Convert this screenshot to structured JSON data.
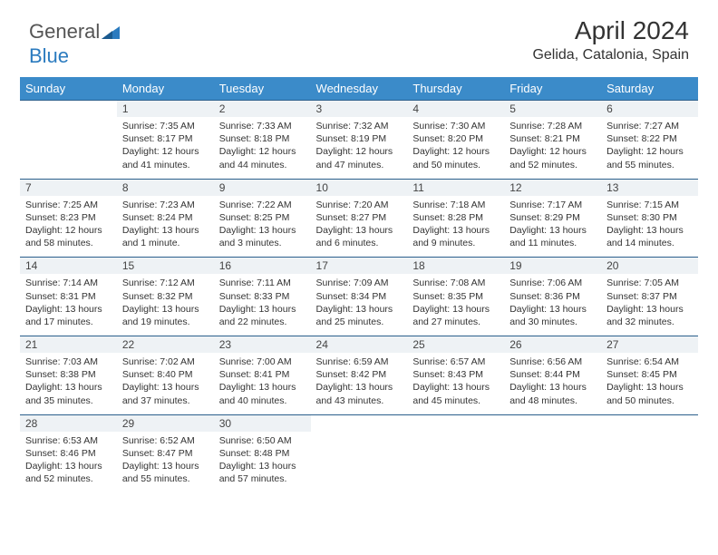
{
  "logo": {
    "text1": "General",
    "text2": "Blue"
  },
  "title": "April 2024",
  "location": "Gelida, Catalonia, Spain",
  "colors": {
    "header_bg": "#3b8bc9",
    "header_text": "#ffffff",
    "daynum_bg": "#eef2f5",
    "border": "#2b5f8c",
    "logo_gray": "#555555",
    "logo_blue": "#2b7bbf"
  },
  "day_headers": [
    "Sunday",
    "Monday",
    "Tuesday",
    "Wednesday",
    "Thursday",
    "Friday",
    "Saturday"
  ],
  "weeks": [
    [
      null,
      {
        "n": "1",
        "sr": "7:35 AM",
        "ss": "8:17 PM",
        "dl": "12 hours and 41 minutes."
      },
      {
        "n": "2",
        "sr": "7:33 AM",
        "ss": "8:18 PM",
        "dl": "12 hours and 44 minutes."
      },
      {
        "n": "3",
        "sr": "7:32 AM",
        "ss": "8:19 PM",
        "dl": "12 hours and 47 minutes."
      },
      {
        "n": "4",
        "sr": "7:30 AM",
        "ss": "8:20 PM",
        "dl": "12 hours and 50 minutes."
      },
      {
        "n": "5",
        "sr": "7:28 AM",
        "ss": "8:21 PM",
        "dl": "12 hours and 52 minutes."
      },
      {
        "n": "6",
        "sr": "7:27 AM",
        "ss": "8:22 PM",
        "dl": "12 hours and 55 minutes."
      }
    ],
    [
      {
        "n": "7",
        "sr": "7:25 AM",
        "ss": "8:23 PM",
        "dl": "12 hours and 58 minutes."
      },
      {
        "n": "8",
        "sr": "7:23 AM",
        "ss": "8:24 PM",
        "dl": "13 hours and 1 minute."
      },
      {
        "n": "9",
        "sr": "7:22 AM",
        "ss": "8:25 PM",
        "dl": "13 hours and 3 minutes."
      },
      {
        "n": "10",
        "sr": "7:20 AM",
        "ss": "8:27 PM",
        "dl": "13 hours and 6 minutes."
      },
      {
        "n": "11",
        "sr": "7:18 AM",
        "ss": "8:28 PM",
        "dl": "13 hours and 9 minutes."
      },
      {
        "n": "12",
        "sr": "7:17 AM",
        "ss": "8:29 PM",
        "dl": "13 hours and 11 minutes."
      },
      {
        "n": "13",
        "sr": "7:15 AM",
        "ss": "8:30 PM",
        "dl": "13 hours and 14 minutes."
      }
    ],
    [
      {
        "n": "14",
        "sr": "7:14 AM",
        "ss": "8:31 PM",
        "dl": "13 hours and 17 minutes."
      },
      {
        "n": "15",
        "sr": "7:12 AM",
        "ss": "8:32 PM",
        "dl": "13 hours and 19 minutes."
      },
      {
        "n": "16",
        "sr": "7:11 AM",
        "ss": "8:33 PM",
        "dl": "13 hours and 22 minutes."
      },
      {
        "n": "17",
        "sr": "7:09 AM",
        "ss": "8:34 PM",
        "dl": "13 hours and 25 minutes."
      },
      {
        "n": "18",
        "sr": "7:08 AM",
        "ss": "8:35 PM",
        "dl": "13 hours and 27 minutes."
      },
      {
        "n": "19",
        "sr": "7:06 AM",
        "ss": "8:36 PM",
        "dl": "13 hours and 30 minutes."
      },
      {
        "n": "20",
        "sr": "7:05 AM",
        "ss": "8:37 PM",
        "dl": "13 hours and 32 minutes."
      }
    ],
    [
      {
        "n": "21",
        "sr": "7:03 AM",
        "ss": "8:38 PM",
        "dl": "13 hours and 35 minutes."
      },
      {
        "n": "22",
        "sr": "7:02 AM",
        "ss": "8:40 PM",
        "dl": "13 hours and 37 minutes."
      },
      {
        "n": "23",
        "sr": "7:00 AM",
        "ss": "8:41 PM",
        "dl": "13 hours and 40 minutes."
      },
      {
        "n": "24",
        "sr": "6:59 AM",
        "ss": "8:42 PM",
        "dl": "13 hours and 43 minutes."
      },
      {
        "n": "25",
        "sr": "6:57 AM",
        "ss": "8:43 PM",
        "dl": "13 hours and 45 minutes."
      },
      {
        "n": "26",
        "sr": "6:56 AM",
        "ss": "8:44 PM",
        "dl": "13 hours and 48 minutes."
      },
      {
        "n": "27",
        "sr": "6:54 AM",
        "ss": "8:45 PM",
        "dl": "13 hours and 50 minutes."
      }
    ],
    [
      {
        "n": "28",
        "sr": "6:53 AM",
        "ss": "8:46 PM",
        "dl": "13 hours and 52 minutes."
      },
      {
        "n": "29",
        "sr": "6:52 AM",
        "ss": "8:47 PM",
        "dl": "13 hours and 55 minutes."
      },
      {
        "n": "30",
        "sr": "6:50 AM",
        "ss": "8:48 PM",
        "dl": "13 hours and 57 minutes."
      },
      null,
      null,
      null,
      null
    ]
  ],
  "labels": {
    "sunrise": "Sunrise: ",
    "sunset": "Sunset: ",
    "daylight": "Daylight: "
  }
}
